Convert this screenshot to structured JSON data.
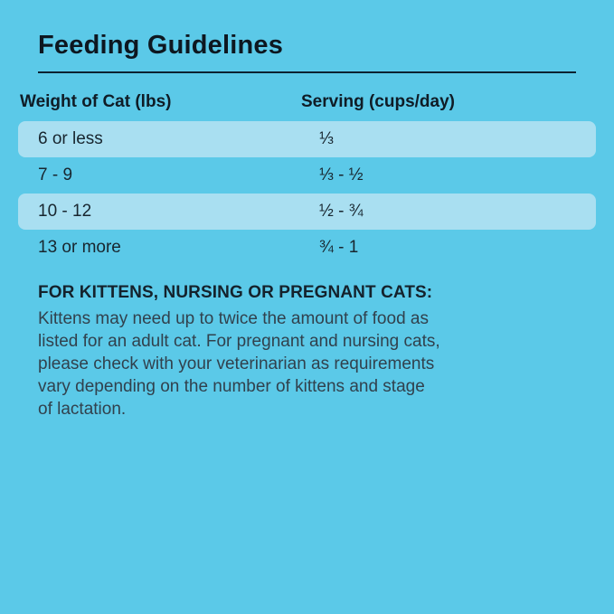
{
  "page": {
    "background_color": "#5BC9E8",
    "highlight_band_color": "#A9DFF1",
    "rule_color": "#0C2231",
    "title_text_color": "#0D1720",
    "body_text_color": "#31414D"
  },
  "title": "Feeding Guidelines",
  "table": {
    "headers": {
      "weight": "Weight of Cat (lbs)",
      "serving": "Serving (cups/day)"
    },
    "rows": [
      {
        "weight": "6 or less",
        "serving": "⅓",
        "highlighted": true
      },
      {
        "weight": "7 - 9",
        "serving": "⅓ - ½",
        "highlighted": false
      },
      {
        "weight": "10 - 12",
        "serving": "½ - ¾",
        "highlighted": true
      },
      {
        "weight": "13 or more",
        "serving": "¾ - 1",
        "highlighted": false
      }
    ]
  },
  "footer": {
    "heading": "FOR KITTENS, NURSING OR PREGNANT CATS:",
    "lines": [
      "Kittens may need up to twice the amount of food as",
      "listed for an adult cat. For pregnant and nursing cats,",
      "please check with your veterinarian as requirements",
      "vary depending on the number of kittens and stage",
      "of lactation."
    ]
  }
}
